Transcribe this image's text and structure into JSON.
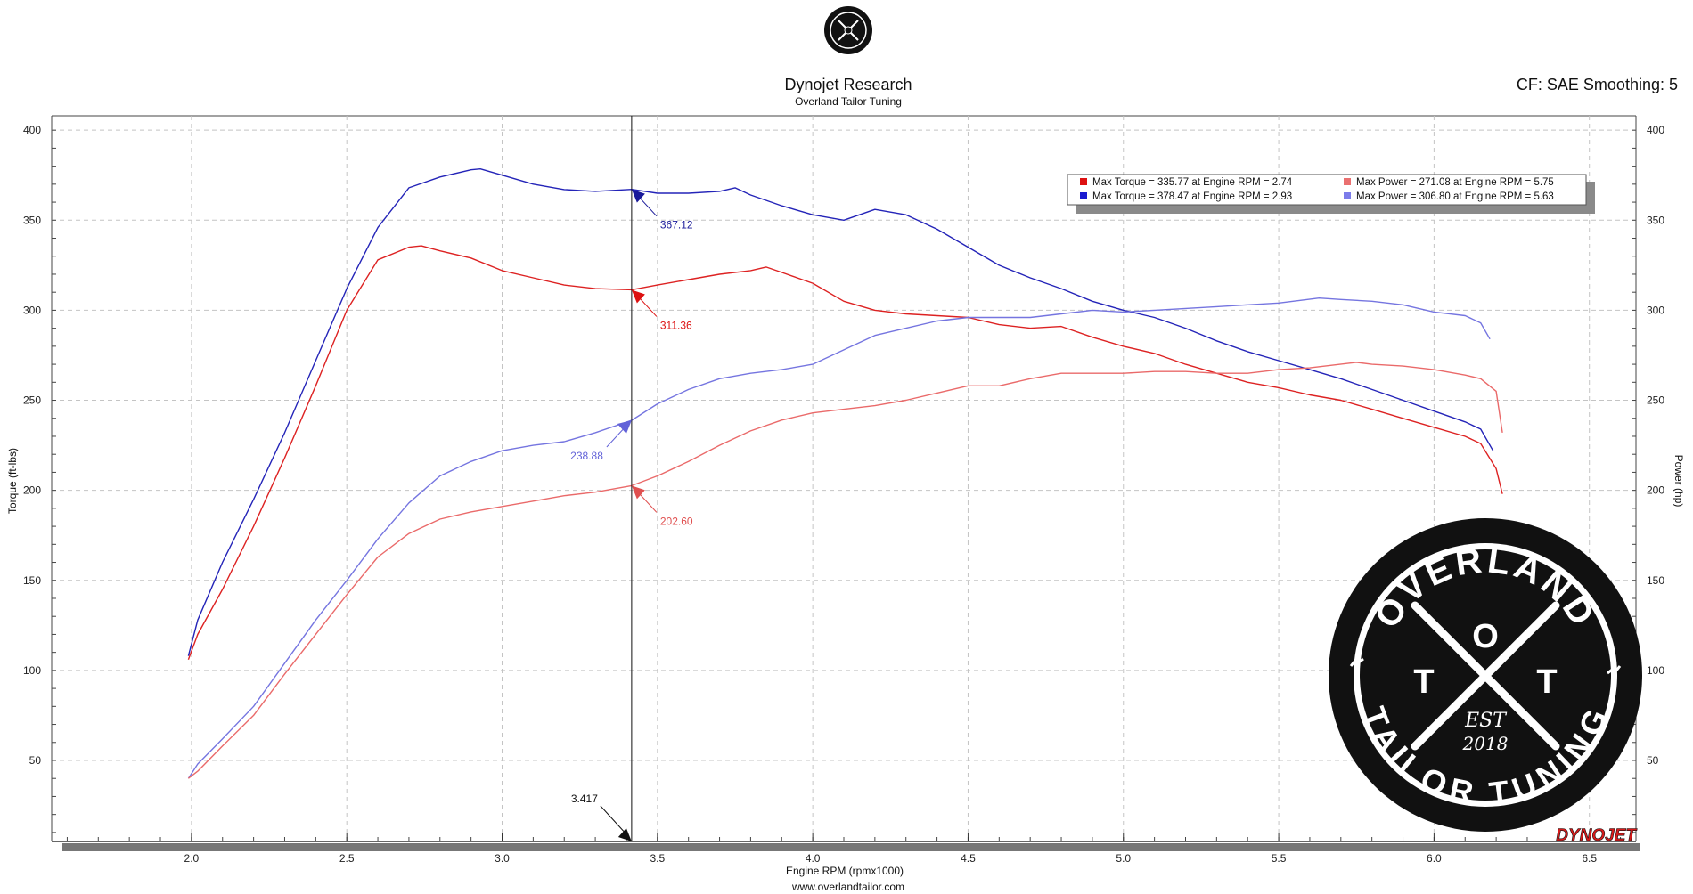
{
  "header": {
    "title": "Dynojet Research",
    "subtitle": "Overland Tailor Tuning",
    "cf_text": "CF: SAE Smoothing: 5",
    "footer_url": "www.overlandtailor.com",
    "brand_mark": "DYNOJET"
  },
  "logo": {
    "top_text": "OVERLAND",
    "bottom_text": "TAILOR TUNING",
    "letters": [
      "T",
      "O",
      "T"
    ],
    "est": "EST",
    "year": "2018"
  },
  "chart_data": {
    "type": "line",
    "xlabel": "Engine RPM (rpmx1000)",
    "ylabel_left": "Torque (ft-lbs)",
    "ylabel_right": "Power (hp)",
    "xlim": [
      1.55,
      6.65
    ],
    "ylim_left": [
      5,
      408
    ],
    "ylim_right": [
      5,
      408
    ],
    "x_ticks": [
      "2.0",
      "2.5",
      "3.0",
      "3.5",
      "4.0",
      "4.5",
      "5.0",
      "5.5",
      "6.0",
      "6.5"
    ],
    "y_ticks": [
      "50",
      "100",
      "150",
      "200",
      "250",
      "300",
      "350",
      "400"
    ],
    "grid": true,
    "cursor": {
      "x": 3.417,
      "label": "3.417"
    },
    "legend": {
      "placement": "top-right",
      "entries": [
        {
          "color": "#dd1111",
          "text": "Max Torque = 335.77 at Engine RPM = 2.74"
        },
        {
          "color": "#ea7070",
          "text": "Max Power = 271.08 at Engine RPM = 5.75"
        },
        {
          "color": "#1a1ad0",
          "text": "Max Torque = 378.47 at Engine RPM = 2.93"
        },
        {
          "color": "#7c7cea",
          "text": "Max Power = 306.80 at Engine RPM = 5.63"
        }
      ]
    },
    "annotations": [
      {
        "series": "blue_torque",
        "value": "367.12",
        "color": "#1a1a9a"
      },
      {
        "series": "red_torque",
        "value": "311.36",
        "color": "#dd1111"
      },
      {
        "series": "blue_power",
        "value": "238.88",
        "color": "#6262d8"
      },
      {
        "series": "red_power",
        "value": "202.60",
        "color": "#e05050"
      }
    ],
    "series": [
      {
        "key": "blue_torque",
        "color": "#2424b8",
        "x": [
          1.99,
          2.02,
          2.1,
          2.2,
          2.3,
          2.4,
          2.5,
          2.6,
          2.7,
          2.8,
          2.9,
          2.93,
          3.0,
          3.1,
          3.2,
          3.3,
          3.417,
          3.5,
          3.6,
          3.7,
          3.75,
          3.8,
          3.9,
          4.0,
          4.1,
          4.2,
          4.3,
          4.4,
          4.5,
          4.6,
          4.7,
          4.8,
          4.9,
          5.0,
          5.1,
          5.2,
          5.3,
          5.4,
          5.5,
          5.6,
          5.7,
          5.8,
          5.9,
          6.0,
          6.1,
          6.15,
          6.19
        ],
        "y": [
          108,
          128,
          160,
          195,
          232,
          272,
          312,
          346,
          368,
          374,
          378,
          378.47,
          375,
          370,
          367,
          366,
          367.12,
          365,
          365,
          366,
          368,
          364,
          358,
          353,
          350,
          356,
          353,
          345,
          335,
          325,
          318,
          312,
          305,
          300,
          296,
          290,
          283,
          277,
          272,
          267,
          262,
          256,
          250,
          244,
          238,
          234,
          222
        ]
      },
      {
        "key": "red_torque",
        "color": "#dd2222",
        "x": [
          1.99,
          2.02,
          2.1,
          2.2,
          2.3,
          2.4,
          2.5,
          2.6,
          2.7,
          2.74,
          2.8,
          2.9,
          3.0,
          3.1,
          3.2,
          3.3,
          3.417,
          3.5,
          3.6,
          3.7,
          3.8,
          3.85,
          3.9,
          4.0,
          4.1,
          4.2,
          4.3,
          4.4,
          4.5,
          4.6,
          4.7,
          4.8,
          4.9,
          5.0,
          5.1,
          5.2,
          5.3,
          5.4,
          5.5,
          5.6,
          5.7,
          5.8,
          5.9,
          6.0,
          6.1,
          6.15,
          6.2,
          6.22
        ],
        "y": [
          106,
          120,
          145,
          180,
          218,
          258,
          300,
          328,
          335,
          335.77,
          333,
          329,
          322,
          318,
          314,
          312,
          311.36,
          314,
          317,
          320,
          322,
          324,
          321,
          315,
          305,
          300,
          298,
          297,
          296,
          292,
          290,
          291,
          285,
          280,
          276,
          270,
          265,
          260,
          257,
          253,
          250,
          245,
          240,
          235,
          230,
          226,
          212,
          198
        ]
      },
      {
        "key": "blue_power",
        "color": "#7575e0",
        "x": [
          1.99,
          2.02,
          2.1,
          2.2,
          2.3,
          2.4,
          2.5,
          2.6,
          2.7,
          2.8,
          2.9,
          3.0,
          3.1,
          3.2,
          3.3,
          3.417,
          3.5,
          3.6,
          3.7,
          3.8,
          3.9,
          4.0,
          4.1,
          4.2,
          4.3,
          4.4,
          4.5,
          4.6,
          4.7,
          4.8,
          4.9,
          5.0,
          5.1,
          5.2,
          5.3,
          5.4,
          5.5,
          5.63,
          5.7,
          5.8,
          5.9,
          6.0,
          6.1,
          6.15,
          6.18
        ],
        "y": [
          40,
          48,
          62,
          80,
          104,
          128,
          150,
          173,
          193,
          208,
          216,
          222,
          225,
          227,
          232,
          238.88,
          248,
          256,
          262,
          265,
          267,
          270,
          278,
          286,
          290,
          294,
          296,
          296,
          296,
          298,
          300,
          299,
          300,
          301,
          302,
          303,
          304,
          306.8,
          306,
          305,
          303,
          299,
          297,
          293,
          284
        ]
      },
      {
        "key": "red_power",
        "color": "#ea6a6a",
        "x": [
          1.99,
          2.02,
          2.1,
          2.2,
          2.3,
          2.4,
          2.5,
          2.6,
          2.7,
          2.8,
          2.9,
          3.0,
          3.1,
          3.2,
          3.3,
          3.417,
          3.5,
          3.6,
          3.7,
          3.8,
          3.9,
          4.0,
          4.1,
          4.2,
          4.3,
          4.4,
          4.5,
          4.6,
          4.7,
          4.8,
          4.9,
          5.0,
          5.1,
          5.2,
          5.3,
          5.4,
          5.5,
          5.6,
          5.75,
          5.8,
          5.9,
          6.0,
          6.1,
          6.15,
          6.2,
          6.22
        ],
        "y": [
          40,
          44,
          58,
          75,
          98,
          120,
          142,
          163,
          176,
          184,
          188,
          191,
          194,
          197,
          199,
          202.6,
          208,
          216,
          225,
          233,
          239,
          243,
          245,
          247,
          250,
          254,
          258,
          258,
          262,
          265,
          265,
          265,
          266,
          266,
          265,
          265,
          267,
          268,
          271.08,
          270,
          269,
          267,
          264,
          262,
          255,
          232
        ]
      }
    ]
  }
}
